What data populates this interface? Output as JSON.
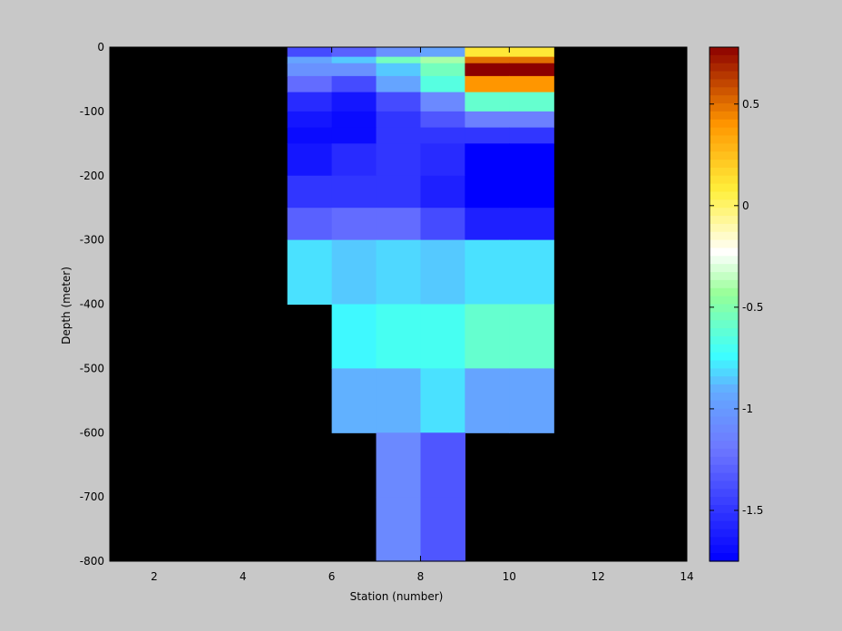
{
  "chart_data": {
    "type": "heatmap",
    "xlabel": "Station (number)",
    "ylabel": "Depth (meter)",
    "xlim": [
      1,
      14
    ],
    "ylim": [
      -800,
      0
    ],
    "xticks": [
      2,
      4,
      6,
      8,
      10,
      12,
      14
    ],
    "yticks": [
      0,
      -100,
      -200,
      -300,
      -400,
      -500,
      -600,
      -700,
      -800
    ],
    "x_tick_labels": [
      "2",
      "4",
      "6",
      "8",
      "10",
      "12",
      "14"
    ],
    "y_tick_labels": [
      "0",
      "-100",
      "-200",
      "-300",
      "-400",
      "-500",
      "-600",
      "-700",
      "-800"
    ],
    "colormap": "jet-like (blue-cyan-green-white-yellow-orange-red)",
    "clim": [
      -1.75,
      0.78
    ],
    "colorbar_ticks": [
      0.5,
      0,
      -0.5,
      -1,
      -1.5
    ],
    "colorbar_tick_labels": [
      "0.5",
      "0",
      "-0.5",
      "-1",
      "-1.5"
    ],
    "missing_color": "#000000",
    "x_edges": [
      5,
      6,
      7,
      8,
      9,
      10,
      11
    ],
    "depth_edges": [
      0,
      -15,
      -25,
      -45,
      -70,
      -100,
      -125,
      -150,
      -200,
      -250,
      -300,
      -400,
      -500,
      -600,
      -700,
      -800
    ],
    "values": [
      [
        -1.4,
        -1.3,
        -1.05,
        -0.95,
        0.1,
        0.1
      ],
      [
        -0.95,
        -0.85,
        -0.55,
        -0.4,
        0.5,
        0.5
      ],
      [
        -1.05,
        -1.05,
        -0.85,
        -0.55,
        0.78,
        0.78
      ],
      [
        -1.25,
        -1.4,
        -0.95,
        -0.65,
        0.4,
        0.4
      ],
      [
        -1.55,
        -1.65,
        -1.4,
        -1.1,
        -0.6,
        -0.6
      ],
      [
        -1.65,
        -1.7,
        -1.5,
        -1.35,
        -1.15,
        -1.15
      ],
      [
        -1.7,
        -1.7,
        -1.5,
        -1.5,
        -1.5,
        -1.5
      ],
      [
        -1.65,
        -1.55,
        -1.5,
        -1.55,
        -1.75,
        -1.75
      ],
      [
        -1.5,
        -1.5,
        -1.5,
        -1.6,
        -1.75,
        -1.75
      ],
      [
        -1.3,
        -1.25,
        -1.25,
        -1.4,
        -1.6,
        -1.6
      ],
      [
        -0.8,
        -0.85,
        -0.82,
        -0.85,
        -0.8,
        -0.8
      ],
      [
        null,
        -0.75,
        -0.7,
        -0.7,
        -0.6,
        -0.6
      ],
      [
        null,
        -0.9,
        -0.9,
        -0.8,
        -0.95,
        -0.95
      ],
      [
        null,
        null,
        -1.1,
        -1.35,
        null,
        null
      ],
      [
        null,
        null,
        -1.1,
        -1.35,
        null,
        null
      ]
    ]
  }
}
